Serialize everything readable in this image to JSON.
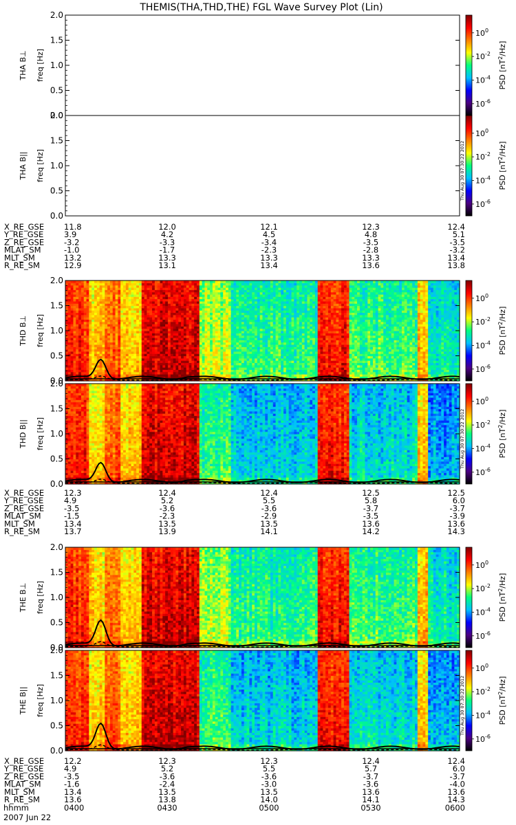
{
  "chart_data": {
    "type": "heatmap",
    "title": "THEMIS(THA,THD,THE) FGL Wave Survey Plot (Lin)",
    "ylabel": "freq [Hz]",
    "ylim": [
      0,
      2.0
    ],
    "yticks": [
      "0.0",
      "0.5",
      "1.0",
      "1.5",
      "2.0"
    ],
    "colorbar": {
      "label": "PSD [nT²/Hz]",
      "label_base": "PSD [nT",
      "label_sup": "2",
      "label_end": "/Hz]",
      "log_range": [
        -7,
        1.5
      ],
      "ticks": [
        {
          "base": "10",
          "exp": "0",
          "log": 0
        },
        {
          "base": "10",
          "exp": "-2",
          "log": -2
        },
        {
          "base": "10",
          "exp": "-4",
          "log": -4
        },
        {
          "base": "10",
          "exp": "-6",
          "log": -6
        }
      ],
      "colors": [
        "#000000",
        "#4b0082",
        "#0000ff",
        "#00c0ff",
        "#00ff80",
        "#ffff00",
        "#ff8000",
        "#ff0000",
        "#800000"
      ]
    },
    "stamp": "Thu Aug 30 07:30:22 2012",
    "x_time": {
      "ticks": [
        "0400",
        "0430",
        "0500",
        "0530",
        "0600"
      ],
      "label": "hhmm",
      "date": "2007 Jun 22",
      "range": [
        "04:00",
        "06:00"
      ]
    },
    "probes": [
      {
        "name": "THA",
        "has_data": false,
        "panels": [
          {
            "label": "THA B⊥",
            "component": "perp"
          },
          {
            "label": "THA B||",
            "component": "par"
          }
        ],
        "ephemeris": [
          {
            "label": "X_RE_GSE",
            "values": [
              "11.8",
              "12.0",
              "12.1",
              "12.3",
              "12.4"
            ]
          },
          {
            "label": "Y_RE_GSE",
            "values": [
              "3.9",
              "4.2",
              "4.5",
              "4.8",
              "5.1"
            ]
          },
          {
            "label": "Z_RE_GSE",
            "values": [
              "-3.2",
              "-3.3",
              "-3.4",
              "-3.5",
              "-3.5"
            ]
          },
          {
            "label": "MLAT_SM",
            "values": [
              "-1.0",
              "-1.7",
              "-2.3",
              "-2.8",
              "-3.2"
            ]
          },
          {
            "label": "MLT_SM",
            "values": [
              "13.2",
              "13.3",
              "13.3",
              "13.3",
              "13.4"
            ]
          },
          {
            "label": "R_RE_SM",
            "values": [
              "12.9",
              "13.1",
              "13.4",
              "13.6",
              "13.8"
            ]
          }
        ]
      },
      {
        "name": "THD",
        "has_data": true,
        "panels": [
          {
            "label": "THD B⊥",
            "component": "perp"
          },
          {
            "label": "THD B||",
            "component": "par"
          }
        ],
        "ephemeris": [
          {
            "label": "X_RE_GSE",
            "values": [
              "12.3",
              "12.4",
              "12.4",
              "12.5",
              "12.5"
            ]
          },
          {
            "label": "Y_RE_GSE",
            "values": [
              "4.9",
              "5.2",
              "5.5",
              "5.8",
              "6.0"
            ]
          },
          {
            "label": "Z_RE_GSE",
            "values": [
              "-3.5",
              "-3.6",
              "-3.6",
              "-3.7",
              "-3.7"
            ]
          },
          {
            "label": "MLAT_SM",
            "values": [
              "-1.5",
              "-2.3",
              "-2.9",
              "-3.5",
              "-3.9"
            ]
          },
          {
            "label": "MLT_SM",
            "values": [
              "13.4",
              "13.5",
              "13.5",
              "13.6",
              "13.6"
            ]
          },
          {
            "label": "R_RE_SM",
            "values": [
              "13.7",
              "13.9",
              "14.1",
              "14.2",
              "14.3"
            ]
          }
        ]
      },
      {
        "name": "THE",
        "has_data": true,
        "panels": [
          {
            "label": "THE B⊥",
            "component": "perp"
          },
          {
            "label": "THE B||",
            "component": "par"
          }
        ],
        "ephemeris": [
          {
            "label": "X_RE_GSE",
            "values": [
              "12.2",
              "12.3",
              "12.3",
              "12.4",
              "12.4"
            ]
          },
          {
            "label": "Y_RE_GSE",
            "values": [
              "4.9",
              "5.2",
              "5.5",
              "5.7",
              "6.0"
            ]
          },
          {
            "label": "Z_RE_GSE",
            "values": [
              "-3.5",
              "-3.6",
              "-3.6",
              "-3.7",
              "-3.7"
            ]
          },
          {
            "label": "MLAT_SM",
            "values": [
              "-1.6",
              "-2.4",
              "-3.0",
              "-3.6",
              "-4.0"
            ]
          },
          {
            "label": "MLT_SM",
            "values": [
              "13.4",
              "13.5",
              "13.5",
              "13.6",
              "13.6"
            ]
          },
          {
            "label": "R_RE_SM",
            "values": [
              "13.6",
              "13.8",
              "14.0",
              "14.1",
              "14.3"
            ]
          }
        ]
      }
    ]
  }
}
